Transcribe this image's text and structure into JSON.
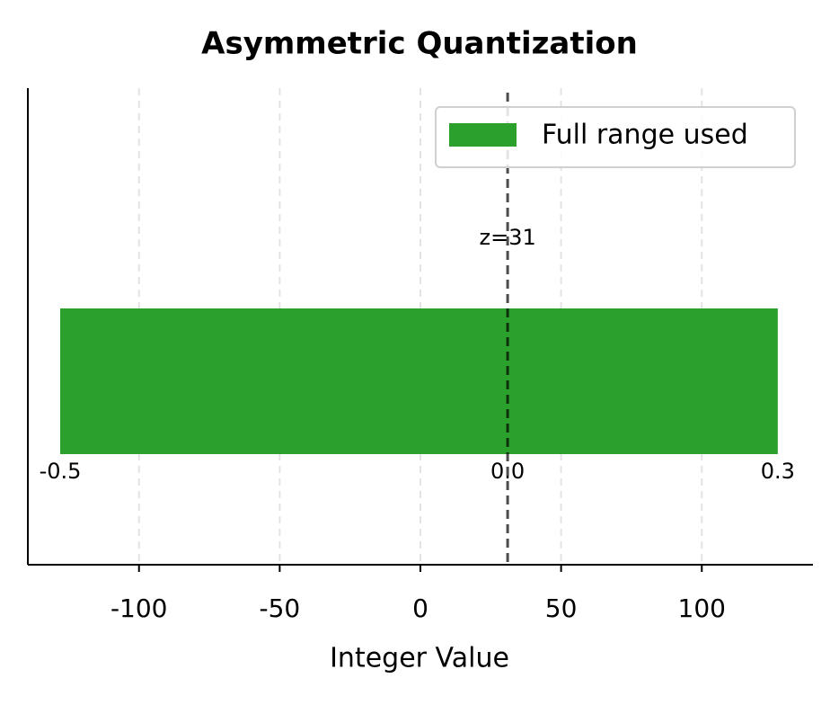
{
  "chart_data": {
    "type": "range-bar",
    "title": "Asymmetric Quantization",
    "x_label": "Integer Value",
    "start": -128,
    "end": 127,
    "color": "#2ca02c",
    "series_name": "Full range used",
    "zero_point": 31,
    "zero_label": "z=31",
    "float_labels": [
      "-0.5",
      "0.0",
      "0.3"
    ],
    "xlim": [
      -139.5,
      139.5
    ],
    "xticks": [
      -100,
      -50,
      0,
      50,
      100
    ],
    "grid": true,
    "legend": "upper right"
  }
}
